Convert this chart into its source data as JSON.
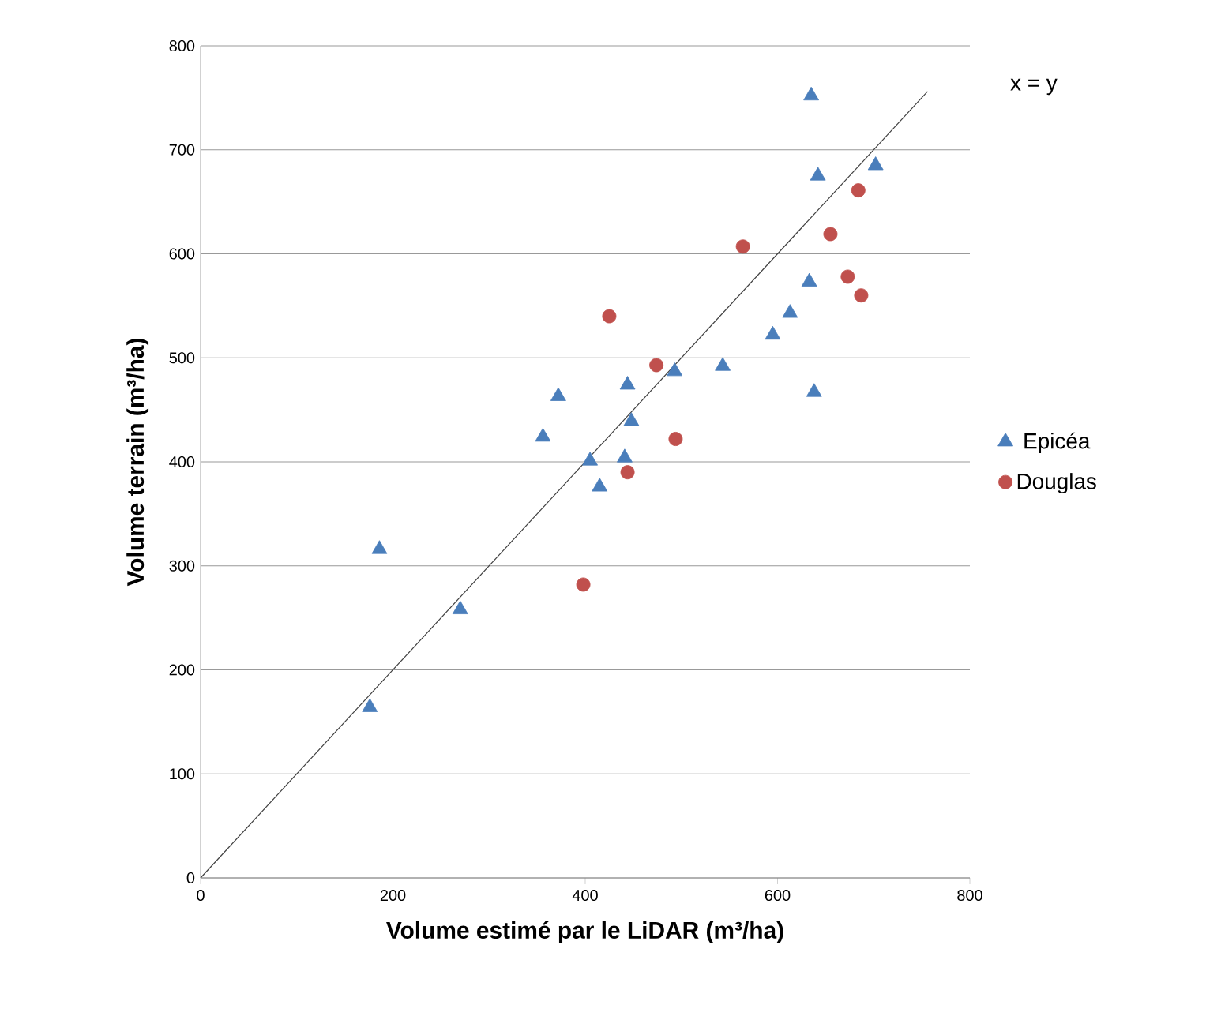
{
  "chart_data": {
    "type": "scatter",
    "xlabel": "Volume estimé par le LiDAR (m³/ha)",
    "ylabel": "Volume terrain (m³/ha)",
    "annotations": [
      "x = y"
    ],
    "xlim": [
      0,
      800
    ],
    "ylim": [
      0,
      800
    ],
    "xticks": [
      0,
      200,
      400,
      600,
      800
    ],
    "yticks": [
      0,
      100,
      200,
      300,
      400,
      500,
      600,
      700,
      800
    ],
    "grid": "y",
    "legend": "right",
    "series": [
      {
        "name": "Epicéa",
        "color": "#4a7ebb",
        "marker": "triangle",
        "x": [
          635,
          642,
          702,
          633,
          613,
          595,
          543,
          493,
          444,
          372,
          638,
          448,
          356,
          405,
          441,
          415,
          186,
          270,
          176
        ],
        "values": [
          752,
          675,
          685,
          573,
          543,
          522,
          492,
          487,
          474,
          463,
          467,
          439,
          424,
          401,
          404,
          376,
          316,
          258,
          164
        ]
      },
      {
        "name": "Douglas",
        "color": "#c0504d",
        "marker": "circle",
        "x": [
          684,
          655,
          564,
          673,
          687,
          425,
          474,
          494,
          444,
          398
        ],
        "values": [
          661,
          619,
          607,
          578,
          560,
          540,
          493,
          422,
          390,
          282
        ]
      },
      {
        "type": "line",
        "color": "#404040",
        "marker": "none",
        "x": [
          0,
          756
        ],
        "values": [
          0,
          756
        ]
      }
    ]
  }
}
